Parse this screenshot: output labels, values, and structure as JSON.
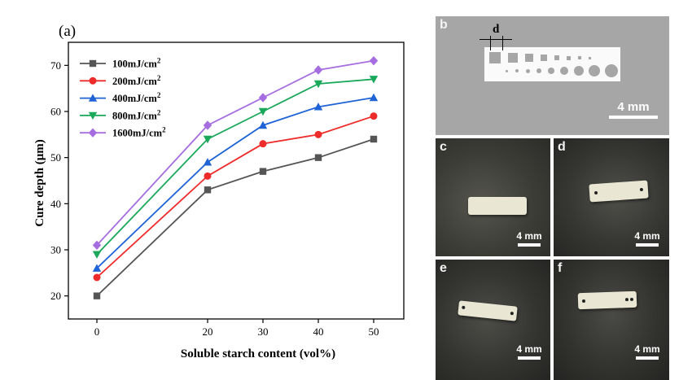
{
  "panel_a": {
    "label": "(a)"
  },
  "chart_data": {
    "type": "line",
    "xlabel": "Soluble starch content (vol%)",
    "ylabel": "Cure depth (μm)",
    "categories": [
      "0",
      "20",
      "30",
      "40",
      "50"
    ],
    "ylim": [
      15,
      75
    ],
    "yticks": [
      "20",
      "30",
      "40",
      "50",
      "60",
      "70"
    ],
    "legend_position": "top-left",
    "series": [
      {
        "name": "100mJ/cm",
        "sup": "2",
        "color": "#555555",
        "marker": "square",
        "values": [
          20,
          43,
          47,
          50,
          54
        ]
      },
      {
        "name": "200mJ/cm",
        "sup": "2",
        "color": "#ee2b2b",
        "marker": "circle",
        "values": [
          24,
          46,
          53,
          55,
          59
        ]
      },
      {
        "name": "400mJ/cm",
        "sup": "2",
        "color": "#1f63d6",
        "marker": "triangle-up",
        "values": [
          26,
          49,
          57,
          61,
          63
        ]
      },
      {
        "name": "800mJ/cm",
        "sup": "2",
        "color": "#1aa85a",
        "marker": "triangle-down",
        "values": [
          29,
          54,
          60,
          66,
          67
        ]
      },
      {
        "name": "1600mJ/cm",
        "sup": "2",
        "color": "#a66de0",
        "marker": "diamond",
        "values": [
          31,
          57,
          63,
          69,
          71
        ]
      }
    ]
  },
  "photos": {
    "b": {
      "letter": "b",
      "dim_label": "d",
      "scale": "4 mm"
    },
    "c": {
      "letter": "c",
      "scale": "4 mm"
    },
    "d": {
      "letter": "d",
      "scale": "4 mm"
    },
    "e": {
      "letter": "e",
      "scale": "4 mm"
    },
    "f": {
      "letter": "f",
      "scale": "4 mm"
    }
  }
}
